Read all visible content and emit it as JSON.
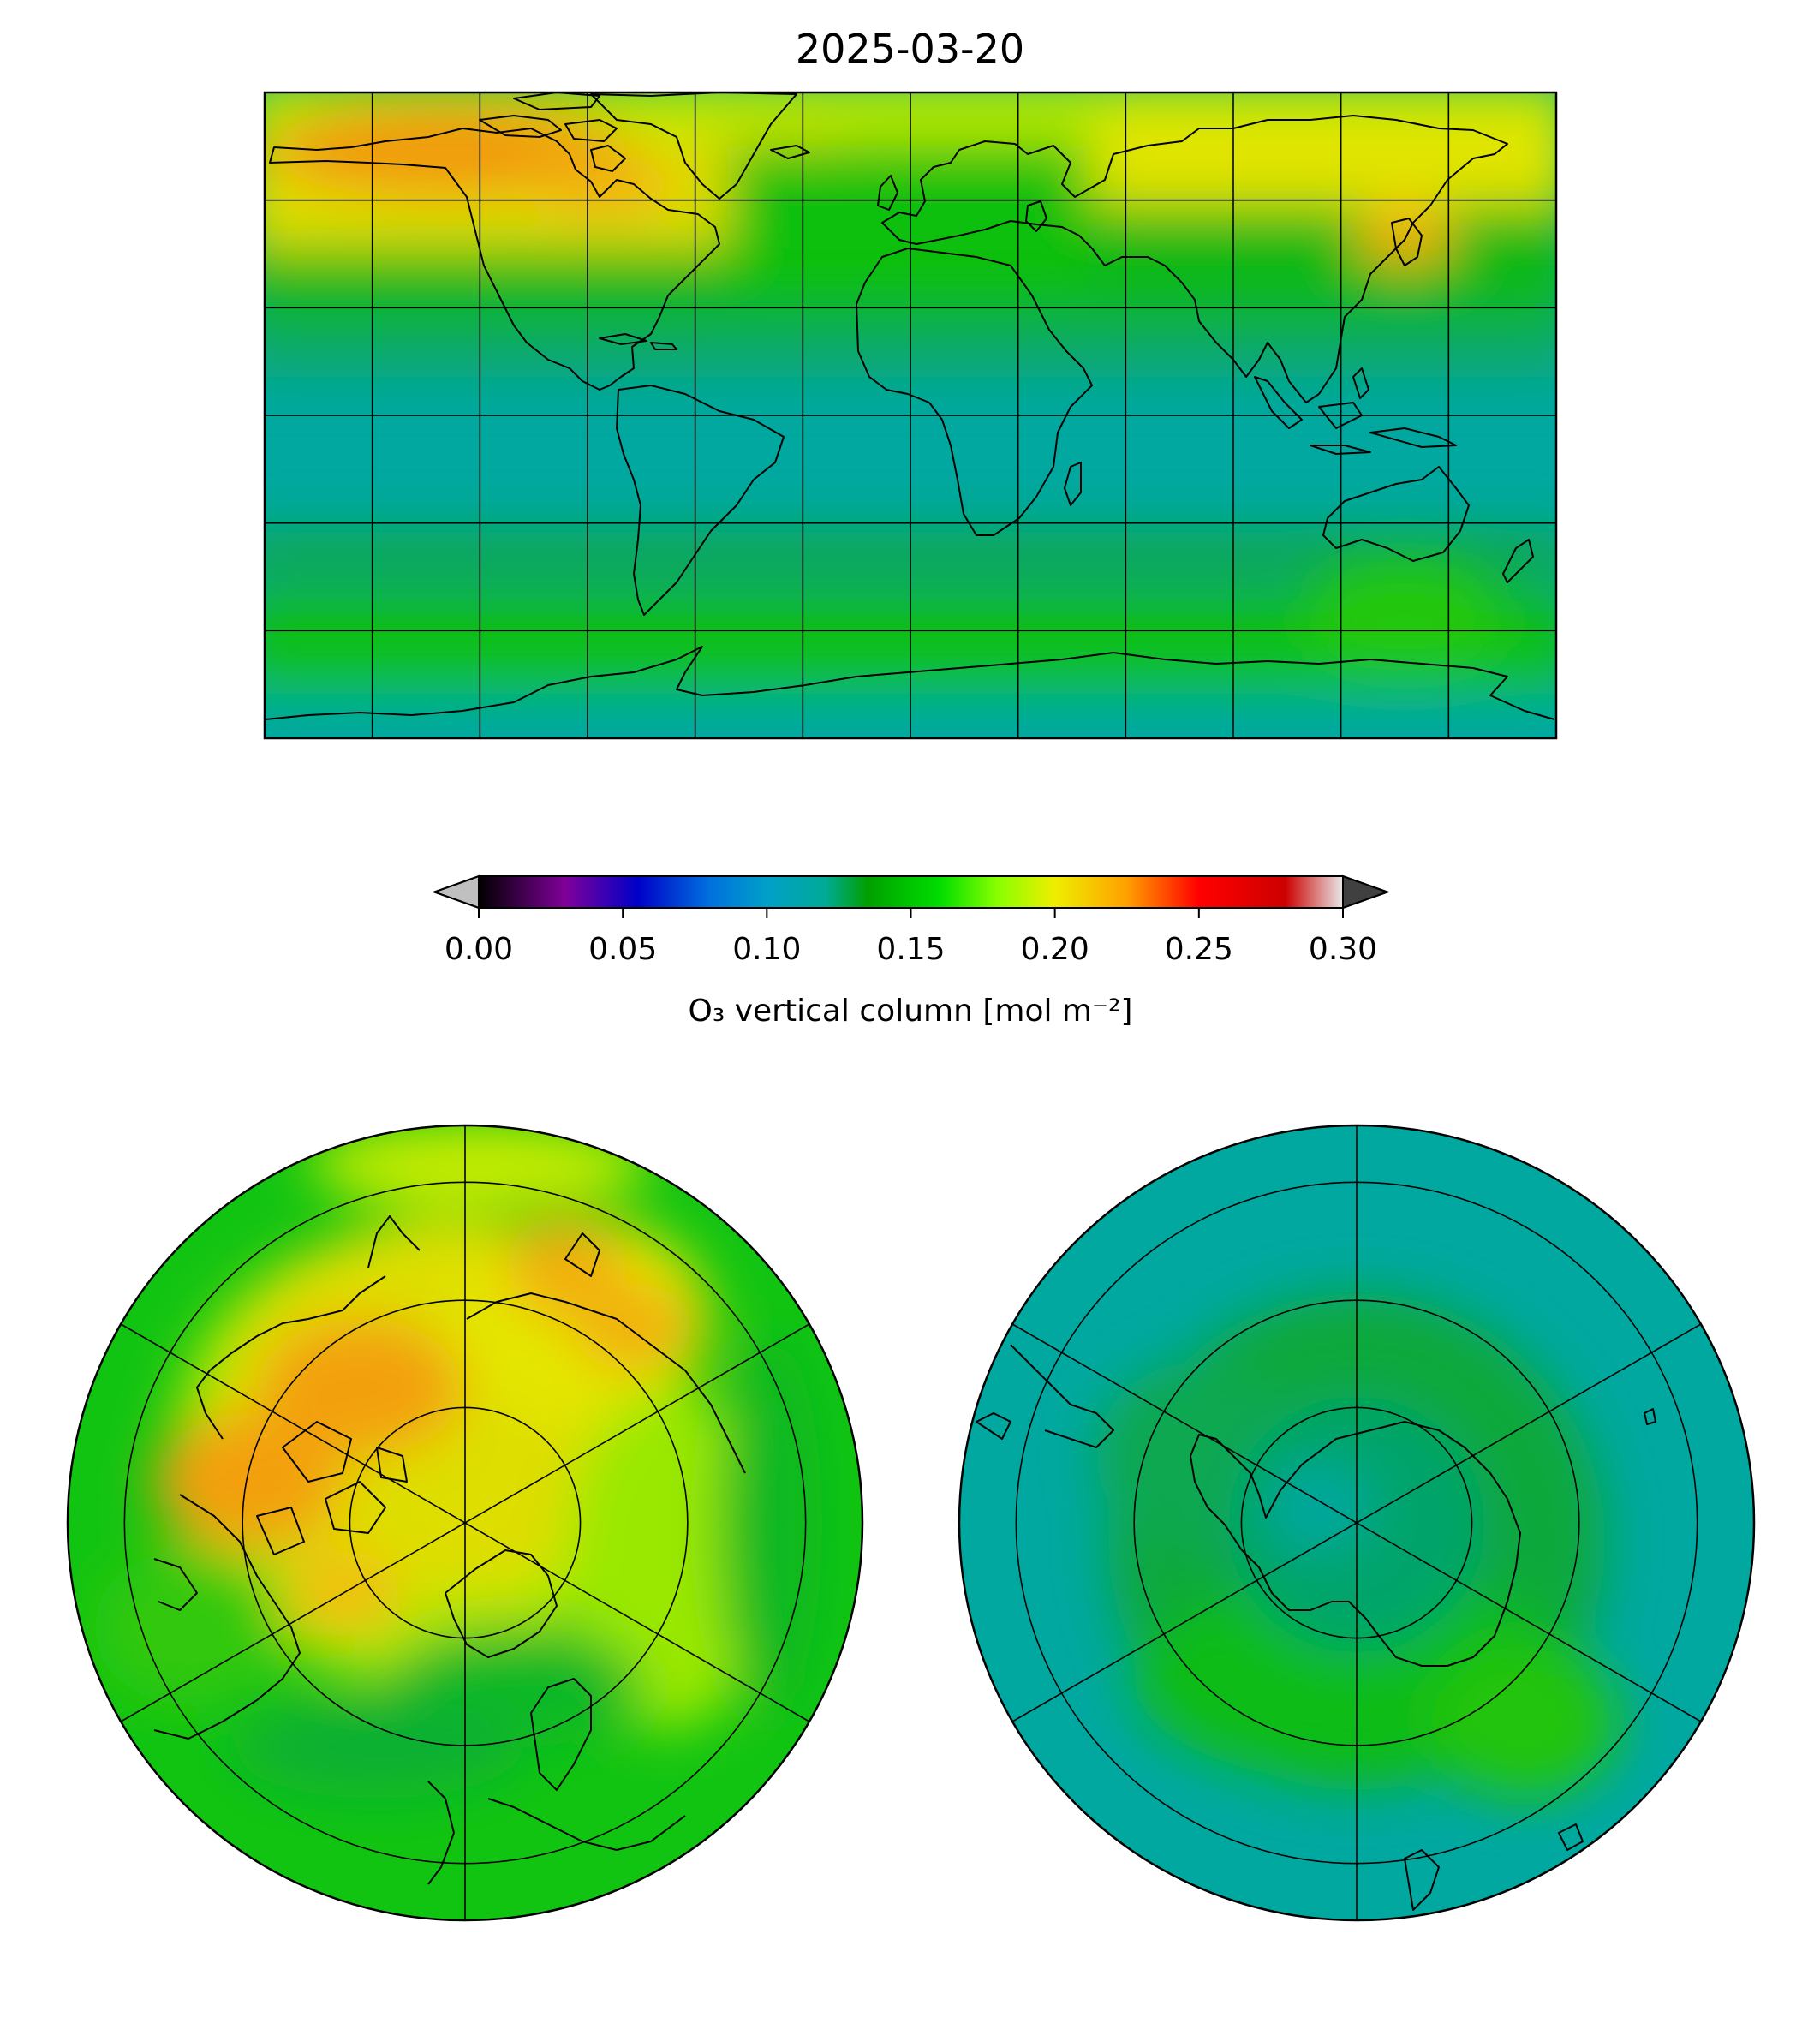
{
  "title": "2025-03-20",
  "colorbar": {
    "label": "O₃ vertical column [mol m⁻²]",
    "ticks": [
      "0.00",
      "0.05",
      "0.10",
      "0.15",
      "0.20",
      "0.25",
      "0.30"
    ],
    "range": [
      0.0,
      0.3
    ],
    "extend": "both",
    "under_color": "#c0c0c0",
    "over_color": "#404040",
    "stops": [
      {
        "v": 0.0,
        "c": "#000000"
      },
      {
        "v": 0.03,
        "c": "#800099"
      },
      {
        "v": 0.055,
        "c": "#0000c8"
      },
      {
        "v": 0.08,
        "c": "#0070dd"
      },
      {
        "v": 0.1,
        "c": "#00a0c8"
      },
      {
        "v": 0.12,
        "c": "#00aa99"
      },
      {
        "v": 0.135,
        "c": "#00a000"
      },
      {
        "v": 0.16,
        "c": "#00dd00"
      },
      {
        "v": 0.18,
        "c": "#88ff00"
      },
      {
        "v": 0.2,
        "c": "#eeee00"
      },
      {
        "v": 0.225,
        "c": "#ffa000"
      },
      {
        "v": 0.25,
        "c": "#ff0000"
      },
      {
        "v": 0.28,
        "c": "#cc0000"
      },
      {
        "v": 0.3,
        "c": "#e8e8e8"
      }
    ]
  },
  "maps": {
    "global": {
      "projection": "PlateCarree",
      "coastlines": true,
      "gridlines": true
    },
    "north_polar": {
      "projection": "NorthPolarStereo",
      "coastlines": true,
      "gridlines": true
    },
    "south_polar": {
      "projection": "SouthPolarStereo",
      "coastlines": true,
      "gridlines": true
    }
  },
  "field_colors": {
    "ocean_tropics": "#00a8a0",
    "mid_lat_green": "#12c412",
    "dark_green": "#0aa83a",
    "yellow_green": "#b4e800",
    "yellow": "#e4e600",
    "orange": "#f39a10"
  }
}
